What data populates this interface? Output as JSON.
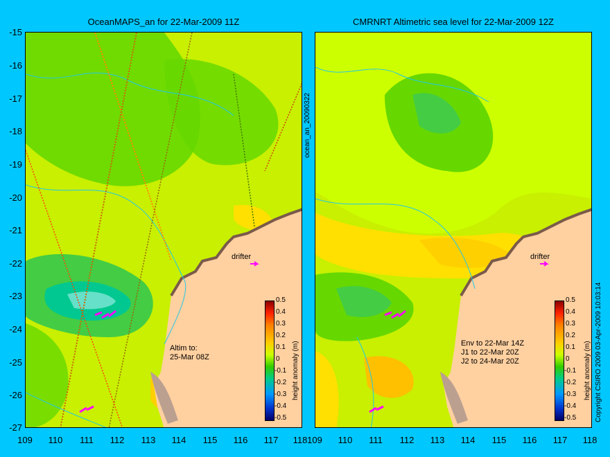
{
  "left_panel": {
    "title": "OceanMAPS_an for 22-Mar-2009 11Z",
    "annotation": "Altim to:\n25-Mar 08Z",
    "drifter_label": "drifter"
  },
  "right_panel": {
    "title": "CMRNRT Altimetric sea level  for 22-Mar-2009 12Z",
    "annotation": "Env to 22-Mar 14Z\nJ1 to 22-Mar 20Z\nJ2 to 24-Mar 20Z",
    "drifter_label": "drifter"
  },
  "axes": {
    "y_ticks": [
      "-15",
      "-16",
      "-17",
      "-18",
      "-19",
      "-20",
      "-21",
      "-22",
      "-23",
      "-24",
      "-25",
      "-26",
      "-27"
    ],
    "x_ticks_left": [
      "109",
      "110",
      "111",
      "112",
      "113",
      "114",
      "115",
      "116",
      "117",
      "118"
    ],
    "x_ticks_right": [
      "109",
      "110",
      "111",
      "112",
      "113",
      "114",
      "115",
      "116",
      "117",
      "118"
    ],
    "lat_range": [
      -27,
      -15
    ],
    "lon_range": [
      109,
      118
    ]
  },
  "colorbar": {
    "label": "height anomaly (m)",
    "ticks": [
      "0.5",
      "0.4",
      "0.3",
      "0.2",
      "0.1",
      "0",
      "-0.1",
      "-0.2",
      "-0.3",
      "-0.4",
      "-0.5"
    ],
    "range": [
      -0.5,
      0.5
    ]
  },
  "side_texts": {
    "file_id": "ocean_an_20090322",
    "copyright": "Copyright CSIRO 2009   03-Apr-2009 10:03:14"
  },
  "colors": {
    "background": "#00c8ff",
    "land": "#ffd0a0",
    "sea_base": "#c8f000",
    "green": "#66d800",
    "teal": "#00c890",
    "orange": "#ffc000",
    "drifter": "#ff00ff",
    "contour": "#22c8e8"
  }
}
